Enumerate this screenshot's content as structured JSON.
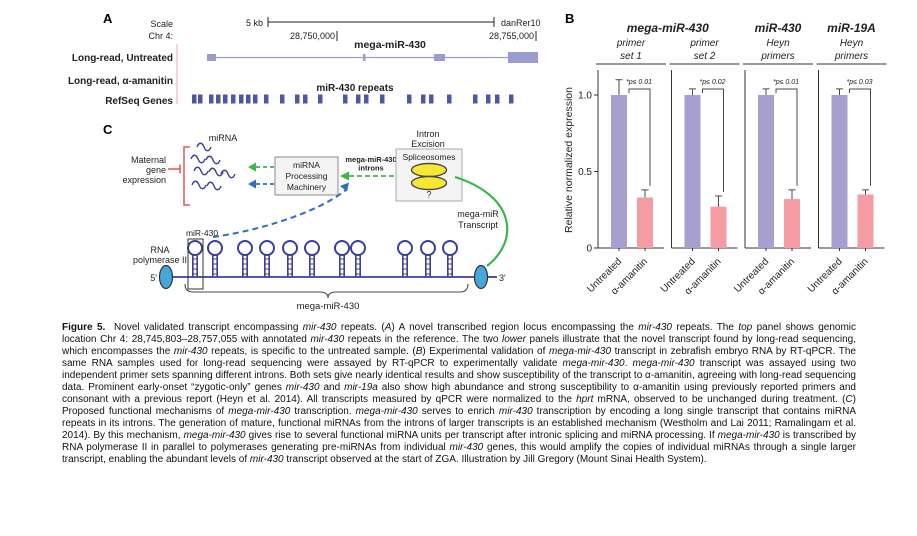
{
  "figure": {
    "panel_a_label": "A",
    "panel_b_label": "B",
    "panel_c_label": "C"
  },
  "colors": {
    "purple_text": "#a3a3d3",
    "purple_exon": "#9a9bce",
    "pink": "#f08ba1",
    "navy": "#333e90",
    "refseq": "#4f57a4",
    "bar_purple": "#a79fcd",
    "bar_pink": "#f49ba3",
    "green": "#3cb54a",
    "blue": "#2f6fb5",
    "dark_blue": "#3a4096",
    "cyan_oval": "#45a8d8",
    "red": "#e0565a",
    "yellow": "#f7e733",
    "box_fill": "#f4f4f4",
    "box_stroke": "#8a8a8a"
  },
  "panel_a": {
    "scale_label": "Scale",
    "chr_label": "Chr 4:",
    "scale_value": "5 kb",
    "assembly": "danRer10",
    "coord_left": "28,750,000",
    "coord_right": "28,755,000",
    "transcript_label": "mega-miR-430",
    "track_untreated": "Long-read, Untreated",
    "track_amanitin": "Long-read, α-amanitin",
    "track_refseq": "RefSeq Genes",
    "repeats_label": "miR-430 repeats",
    "exons": [
      {
        "x": 207,
        "w": 9,
        "tall": false
      },
      {
        "x": 363,
        "w": 2.5,
        "tall": false
      },
      {
        "x": 434,
        "w": 11,
        "tall": false
      },
      {
        "x": 508,
        "w": 30,
        "tall": true
      }
    ],
    "refseq_positions": [
      192,
      198,
      209,
      216,
      223,
      231,
      239,
      246,
      253,
      264,
      280,
      295,
      303,
      318,
      343,
      356,
      364,
      380,
      407,
      421,
      429,
      447,
      473,
      486,
      495,
      509
    ]
  },
  "chart_data": {
    "type": "bar",
    "title": "",
    "xlabel": "",
    "ylabel": "Relative normalized expression",
    "ylim": [
      0,
      1.15
    ],
    "yticks": [
      {
        "v": 0,
        "label": "0"
      },
      {
        "v": 0.5,
        "label": "0.5"
      },
      {
        "v": 1.0,
        "label": "1.0"
      }
    ],
    "grid": false,
    "legend_position": "none",
    "categories": [
      "Untreated",
      "α-amanitin"
    ],
    "bar_colors": [
      "#a79fcd",
      "#f49ba3"
    ],
    "span_titles": [
      {
        "label": "mega-miR-430",
        "start": 0,
        "end": 1
      },
      {
        "label": "miR-430",
        "start": 2,
        "end": 2
      },
      {
        "label": "miR-19A",
        "start": 3,
        "end": 3
      }
    ],
    "groups": [
      {
        "subtitle_lines": [
          "primer",
          "set 1"
        ],
        "pvalue": "*p≤ 0.01",
        "values": [
          1.0,
          0.33
        ],
        "errors": [
          0.1,
          0.05
        ]
      },
      {
        "subtitle_lines": [
          "primer",
          "set 2"
        ],
        "pvalue": "*p≤ 0.02",
        "values": [
          1.0,
          0.27
        ],
        "errors": [
          0.04,
          0.07
        ]
      },
      {
        "subtitle_lines": [
          "Heyn",
          "primers"
        ],
        "pvalue": "*p≤ 0.01",
        "values": [
          1.0,
          0.32
        ],
        "errors": [
          0.04,
          0.06
        ]
      },
      {
        "subtitle_lines": [
          "Heyn",
          "primers"
        ],
        "pvalue": "*p≤ 0.03",
        "values": [
          1.0,
          0.35
        ],
        "errors": [
          0.04,
          0.03
        ]
      }
    ]
  },
  "panel_c": {
    "mirna_label": "miRNA",
    "maternal_lines": [
      "Maternal",
      "gene",
      "expression"
    ],
    "machinery_lines": [
      "miRNA",
      "Processing",
      "Machinery"
    ],
    "introns_label_lines": [
      "mega-miR-430",
      "introns"
    ],
    "intron_excision_lines": [
      "Intron",
      "Excision"
    ],
    "spliceosomes_label": "Spliceosomes",
    "question_mark": "?",
    "mega_transcript_lines": [
      "mega-miR",
      "Transcript"
    ],
    "rna_pol_lines": [
      "RNA",
      "polymerase II"
    ],
    "five_prime": "5'",
    "three_prime": "3'",
    "mir430_label": "miR-430",
    "brace_label": "mega-miR-430",
    "hairpin_positions": [
      195,
      215,
      245,
      267,
      290,
      312,
      342,
      358,
      405,
      428,
      450
    ],
    "squiggle_positions": [
      [
        197,
        147
      ],
      [
        191,
        159
      ],
      [
        206,
        160
      ],
      [
        194,
        171
      ],
      [
        209,
        172
      ],
      [
        221,
        174
      ],
      [
        192,
        185
      ],
      [
        207,
        186
      ]
    ]
  },
  "caption": {
    "segments": [
      {
        "b": 1,
        "t": "Figure 5."
      },
      {
        "t": "  Novel validated transcript encompassing "
      },
      {
        "i": 1,
        "t": "mir-430"
      },
      {
        "t": " repeats. ("
      },
      {
        "i": 1,
        "t": "A"
      },
      {
        "t": ") A novel transcribed region locus encompassing the "
      },
      {
        "i": 1,
        "t": "mir-430"
      },
      {
        "t": " repeats. The "
      },
      {
        "i": 1,
        "t": "top"
      },
      {
        "t": " panel shows genomic location Chr 4: 28,745,803–28,757,055 with annotated "
      },
      {
        "i": 1,
        "t": "mir-430"
      },
      {
        "t": " repeats in the reference. The two "
      },
      {
        "i": 1,
        "t": "lower"
      },
      {
        "t": " panels illustrate that the novel transcript found by long-read sequencing, which encompasses the "
      },
      {
        "i": 1,
        "t": "mir-430"
      },
      {
        "t": " repeats, is specific to the untreated sample. ("
      },
      {
        "i": 1,
        "t": "B"
      },
      {
        "t": ") Experimental validation of "
      },
      {
        "i": 1,
        "t": "mega-mir-430"
      },
      {
        "t": " transcript in zebrafish embryo RNA by RT-qPCR. The same RNA samples used for long-read sequencing were assayed by RT-qPCR to experimentally validate "
      },
      {
        "i": 1,
        "t": "mega-mir-430"
      },
      {
        "t": ". "
      },
      {
        "i": 1,
        "t": "mega-mir-430"
      },
      {
        "t": " transcript was assayed using two independent primer sets spanning different introns. Both sets give nearly identical results and show susceptibility of the transcript to α-amanitin, agreeing with long-read sequencing data. Prominent early-onset “zygotic-only” genes "
      },
      {
        "i": 1,
        "t": "mir-430"
      },
      {
        "t": " and "
      },
      {
        "i": 1,
        "t": "mir-19a"
      },
      {
        "t": " also show high abundance and strong susceptibility to α-amanitin using previously reported primers and consonant with a previous report (Heyn et al. 2014). All transcripts measured by qPCR were normalized to the "
      },
      {
        "i": 1,
        "t": "hprt"
      },
      {
        "t": " mRNA, observed to be unchanged during treatment. ("
      },
      {
        "i": 1,
        "t": "C"
      },
      {
        "t": ") Proposed functional mechanisms of "
      },
      {
        "i": 1,
        "t": "mega-mir-430"
      },
      {
        "t": " transcription. "
      },
      {
        "i": 1,
        "t": "mega-mir-430"
      },
      {
        "t": " serves to enrich "
      },
      {
        "i": 1,
        "t": "mir-430"
      },
      {
        "t": " transcription by encoding a long single transcript that contains miRNA repeats in its introns. The generation of mature, functional miRNAs from the introns of larger transcripts is an established mechanism (Westholm and Lai 2011; Ramalingam et al. 2014). By this mechanism, "
      },
      {
        "i": 1,
        "t": "mega-mir-430"
      },
      {
        "t": " gives rise to several functional miRNA units per transcript after intronic splicing and miRNA processing. If "
      },
      {
        "i": 1,
        "t": "mega-mir-430"
      },
      {
        "t": " is transcribed by RNA polymerase II in parallel to polymerases generating pre-miRNAs from individual "
      },
      {
        "i": 1,
        "t": "mir-430"
      },
      {
        "t": " genes, this would amplify the copies of individual miRNAs through a single larger transcript, enabling the abundant levels of "
      },
      {
        "i": 1,
        "t": "mir-430"
      },
      {
        "t": " transcript observed at the start of ZGA. Illustration by Jill Gregory (Mount Sinai Health System)."
      }
    ]
  }
}
